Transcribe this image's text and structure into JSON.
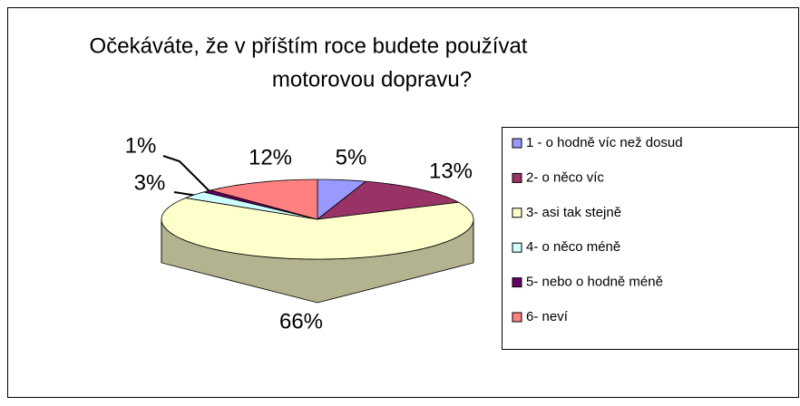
{
  "chart_data": {
    "type": "pie3d",
    "title": [
      "Očekáváte, že v příštím  roce budete používat",
      "motorovou dopravu?"
    ],
    "categories": [
      "1 - o hodně víc než dosud",
      "2- o něco víc",
      "3- asi tak stejně",
      "4- o něco méně",
      "5- nebo o hodně méně",
      "6- neví"
    ],
    "values": [
      5,
      13,
      66,
      3,
      1,
      12
    ],
    "value_labels": [
      "5%",
      "13%",
      "66%",
      "3%",
      "1%",
      "12%"
    ],
    "colors": [
      "#9999ff",
      "#993366",
      "#ffffcc",
      "#ccffff",
      "#660066",
      "#ff8080"
    ],
    "legend": "right"
  }
}
